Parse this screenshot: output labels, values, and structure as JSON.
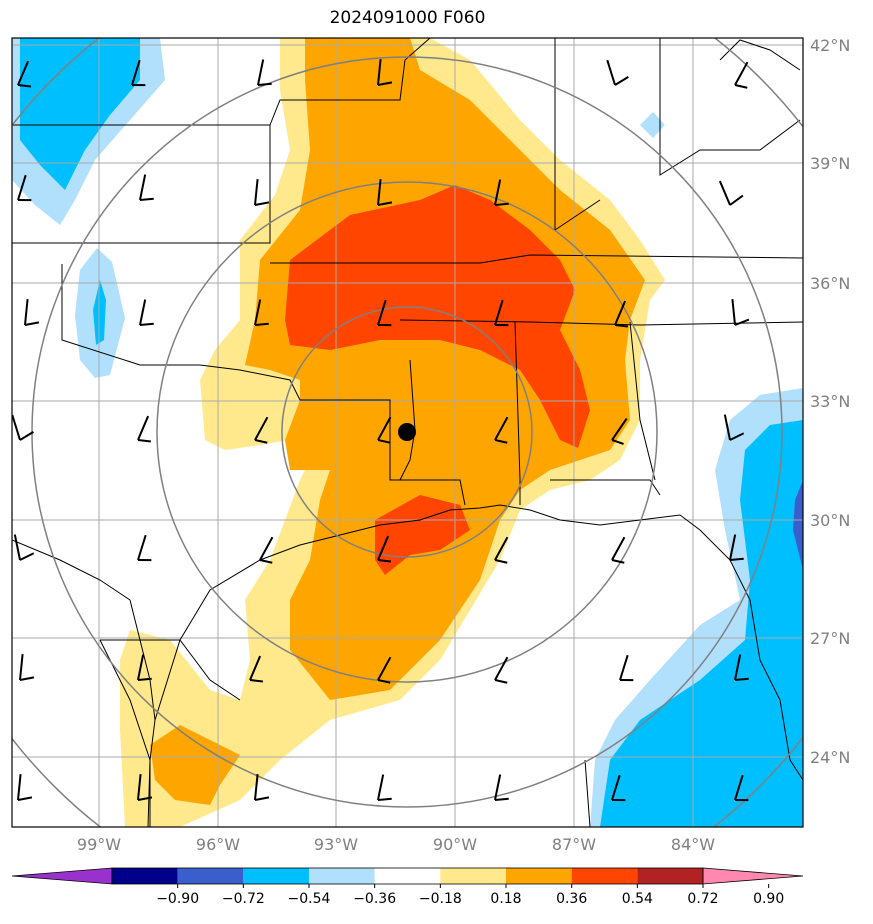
{
  "title": "2024091000 F060",
  "lat_labels": [
    "42°N",
    "39°N",
    "36°N",
    "33°N",
    "30°N",
    "27°N",
    "24°N"
  ],
  "lon_labels": [
    "99°W",
    "96°W",
    "93°W",
    "90°W",
    "87°W",
    "84°W"
  ],
  "colorbar": {
    "ticks": [
      "−0.90",
      "−0.72",
      "−0.54",
      "−0.36",
      "−0.18",
      "0.18",
      "0.36",
      "0.54",
      "0.72",
      "0.90"
    ],
    "colors": [
      "#9932cc",
      "#00008b",
      "#3a5fcd",
      "#00bfff",
      "#b0e0fc",
      "#ffffff",
      "#ffe98c",
      "#ffa500",
      "#ff4500",
      "#b22222",
      "#ff88b0"
    ]
  },
  "chart_data": {
    "type": "heatmap",
    "title": "2024091000 F060",
    "lat_range": [
      22.5,
      42.5
    ],
    "lon_range": [
      -101,
      -81
    ],
    "colorbar_levels": [
      -0.9,
      -0.72,
      -0.54,
      -0.36,
      -0.18,
      0.18,
      0.36,
      0.54,
      0.72,
      0.9
    ],
    "marker": {
      "lat": 32.2,
      "lon": -91.2
    },
    "range_ring_count": 5,
    "grid": true
  }
}
